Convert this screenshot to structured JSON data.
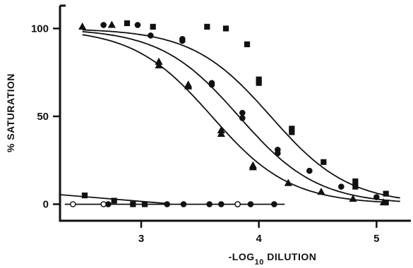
{
  "chart_data": {
    "type": "scatter",
    "title": "",
    "xlabel": {
      "prefix": "-LOG",
      "subscript": "10",
      "suffix": " DILUTION"
    },
    "ylabel": "% SATURATION",
    "xlim": [
      2.25,
      5.25
    ],
    "ylim": [
      -7,
      113
    ],
    "x_ticks": [
      3,
      4,
      5
    ],
    "x_tick_labels": [
      "3",
      "4",
      "5"
    ],
    "y_ticks": [
      0,
      50,
      100
    ],
    "y_tick_labels": [
      "0",
      "50",
      "100"
    ],
    "grid": false,
    "legend": "none",
    "series": [
      {
        "marker": "triangle",
        "fill": "#111111",
        "curve": {
          "type": "sigmoid",
          "top": 100,
          "bottom": 0,
          "midpoint": 3.6,
          "slope": 3.0,
          "x_range": [
            2.5,
            5.1
          ]
        },
        "points": [
          [
            2.5,
            101
          ],
          [
            2.75,
            102
          ],
          [
            3.15,
            81
          ],
          [
            3.15,
            79
          ],
          [
            3.4,
            68
          ],
          [
            3.4,
            67
          ],
          [
            3.68,
            42
          ],
          [
            3.68,
            40
          ],
          [
            3.95,
            22
          ],
          [
            3.95,
            21
          ],
          [
            4.25,
            12
          ],
          [
            4.53,
            7
          ],
          [
            4.8,
            3
          ],
          [
            5.06,
            1
          ]
        ]
      },
      {
        "marker": "circle",
        "fill": "#111111",
        "curve": {
          "type": "sigmoid",
          "top": 100,
          "bottom": 0,
          "midpoint": 3.83,
          "slope": 3.0,
          "x_range": [
            2.5,
            5.2
          ]
        },
        "points": [
          [
            2.68,
            102
          ],
          [
            2.97,
            102
          ],
          [
            3.08,
            96
          ],
          [
            3.35,
            94
          ],
          [
            3.35,
            93
          ],
          [
            3.6,
            69
          ],
          [
            3.6,
            68
          ],
          [
            3.86,
            52
          ],
          [
            3.86,
            49
          ],
          [
            4.16,
            31
          ],
          [
            4.16,
            29
          ],
          [
            4.43,
            19
          ],
          [
            4.7,
            10
          ],
          [
            5.0,
            4
          ]
        ]
      },
      {
        "marker": "square",
        "fill": "#111111",
        "curve": {
          "type": "sigmoid",
          "top": 100,
          "bottom": 0,
          "midpoint": 4.1,
          "slope": 3.0,
          "x_range": [
            2.5,
            5.2
          ]
        },
        "points": [
          [
            2.88,
            103
          ],
          [
            3.1,
            101
          ],
          [
            3.56,
            101
          ],
          [
            3.72,
            100
          ],
          [
            3.9,
            91
          ],
          [
            4.0,
            71
          ],
          [
            4.0,
            69
          ],
          [
            4.28,
            43
          ],
          [
            4.28,
            41
          ],
          [
            4.55,
            24
          ],
          [
            4.82,
            13
          ],
          [
            4.82,
            10
          ],
          [
            5.08,
            6
          ],
          [
            5.08,
            1
          ]
        ]
      },
      {
        "marker": "square",
        "fill": "#111111",
        "curve": {
          "type": "line",
          "points": [
            [
              2.3,
              5.5
            ],
            [
              3.2,
              0.5
            ]
          ]
        },
        "points": [
          [
            2.52,
            5
          ],
          [
            2.77,
            2
          ],
          [
            2.93,
            0
          ],
          [
            3.03,
            0
          ]
        ]
      },
      {
        "marker": "circle",
        "fill": "#111111",
        "curve": {
          "type": "line",
          "points": [
            [
              2.35,
              0
            ],
            [
              4.22,
              0
            ]
          ]
        },
        "points": [
          [
            2.72,
            0
          ],
          [
            3.22,
            0
          ],
          [
            3.36,
            0
          ],
          [
            3.58,
            0
          ],
          [
            3.68,
            0
          ],
          [
            3.82,
            0
          ],
          [
            3.93,
            0
          ],
          [
            4.13,
            0
          ]
        ]
      },
      {
        "marker": "circle",
        "fill": "#ffffff",
        "curve": null,
        "points": [
          [
            2.42,
            0
          ],
          [
            2.68,
            0
          ],
          [
            3.82,
            0
          ]
        ]
      }
    ]
  }
}
